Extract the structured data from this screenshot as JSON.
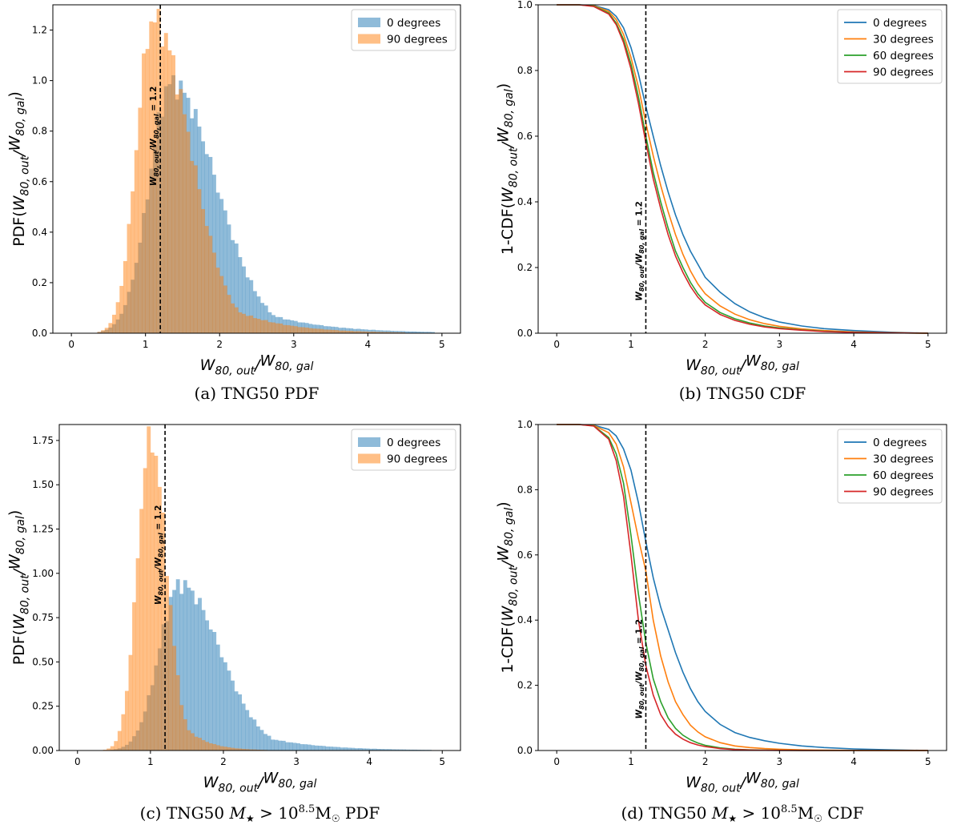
{
  "colors": {
    "blue": "#1f77b4",
    "orange": "#ff7f0e",
    "green": "#2ca02c",
    "red": "#d62728",
    "hist_blue": "#1f77b4",
    "hist_orange": "#ff7f0e"
  },
  "chart_data": [
    {
      "panel": "a",
      "type": "bar",
      "caption": "(a) TNG50 PDF",
      "xlabel": "W80,out/W80,gal",
      "ylabel": "PDF(W80,out/W80,gal)",
      "xlim": [
        -0.25,
        5.25
      ],
      "ylim": [
        0,
        1.3
      ],
      "xticks": [
        "0",
        "1",
        "2",
        "3",
        "4",
        "5"
      ],
      "yticks": [
        "0.0",
        "0.2",
        "0.4",
        "0.6",
        "0.8",
        "1.0",
        "1.2"
      ],
      "vline": {
        "x": 1.2,
        "label": "W80,out/W80,gal = 1.2"
      },
      "legend": {
        "position": "top-right",
        "entries": [
          "0 degrees",
          "90 degrees"
        ]
      },
      "bin_width": 0.05,
      "series": [
        {
          "name": "0 degrees",
          "color": "#1f77b4",
          "opacity": 0.5,
          "mode": 1.35,
          "peak": 0.99,
          "sigma_left": 0.3,
          "sigma_right": 0.6,
          "x_start": 0.35,
          "x_end": 4.85
        },
        {
          "name": "90 degrees",
          "color": "#ff7f0e",
          "opacity": 0.5,
          "mode": 1.1,
          "peak": 1.24,
          "sigma_left": 0.22,
          "sigma_right": 0.5,
          "x_start": 0.35,
          "x_end": 4.5
        }
      ]
    },
    {
      "panel": "b",
      "type": "line",
      "caption": "(b) TNG50 CDF",
      "xlabel": "W80,out/W80,gal",
      "ylabel": "1-CDF(W80,out/W80,gal)",
      "xlim": [
        -0.25,
        5.25
      ],
      "ylim": [
        0,
        1.0
      ],
      "xticks": [
        "0",
        "1",
        "2",
        "3",
        "4",
        "5"
      ],
      "yticks": [
        "0.0",
        "0.2",
        "0.4",
        "0.6",
        "0.8",
        "1.0"
      ],
      "vline": {
        "x": 1.2,
        "label": "W80,out/W80,gal = 1.2"
      },
      "legend": {
        "position": "top-right",
        "entries": [
          "0 degrees",
          "30 degrees",
          "60 degrees",
          "90 degrees"
        ]
      },
      "series": [
        {
          "name": "0 degrees",
          "color": "#1f77b4",
          "x": [
            0,
            0.3,
            0.5,
            0.7,
            0.8,
            0.9,
            1.0,
            1.1,
            1.2,
            1.3,
            1.4,
            1.5,
            1.6,
            1.7,
            1.8,
            1.9,
            2.0,
            2.2,
            2.4,
            2.6,
            2.8,
            3.0,
            3.3,
            3.6,
            4.0,
            4.5,
            5.0
          ],
          "y": [
            1.0,
            1.0,
            0.998,
            0.985,
            0.965,
            0.93,
            0.87,
            0.79,
            0.69,
            0.6,
            0.51,
            0.43,
            0.36,
            0.3,
            0.25,
            0.21,
            0.17,
            0.125,
            0.09,
            0.065,
            0.047,
            0.034,
            0.022,
            0.014,
            0.008,
            0.003,
            0.0
          ]
        },
        {
          "name": "30 degrees",
          "color": "#ff7f0e",
          "x": [
            0,
            0.3,
            0.5,
            0.7,
            0.8,
            0.9,
            1.0,
            1.1,
            1.2,
            1.3,
            1.4,
            1.5,
            1.6,
            1.7,
            1.8,
            1.9,
            2.0,
            2.2,
            2.4,
            2.6,
            2.8,
            3.0,
            3.3,
            3.6,
            4.0,
            4.5,
            5.0
          ],
          "y": [
            1.0,
            1.0,
            0.997,
            0.98,
            0.955,
            0.91,
            0.84,
            0.75,
            0.64,
            0.54,
            0.45,
            0.37,
            0.3,
            0.24,
            0.19,
            0.15,
            0.12,
            0.083,
            0.058,
            0.041,
            0.029,
            0.021,
            0.013,
            0.008,
            0.004,
            0.0015,
            0.0
          ]
        },
        {
          "name": "60 degrees",
          "color": "#2ca02c",
          "x": [
            0,
            0.3,
            0.5,
            0.7,
            0.8,
            0.9,
            1.0,
            1.1,
            1.2,
            1.3,
            1.4,
            1.5,
            1.6,
            1.7,
            1.8,
            1.9,
            2.0,
            2.2,
            2.4,
            2.6,
            2.8,
            3.0,
            3.3,
            3.6,
            4.0,
            4.5,
            5.0
          ],
          "y": [
            1.0,
            1.0,
            0.996,
            0.975,
            0.945,
            0.895,
            0.82,
            0.72,
            0.6,
            0.49,
            0.4,
            0.32,
            0.25,
            0.2,
            0.155,
            0.12,
            0.094,
            0.063,
            0.044,
            0.031,
            0.022,
            0.016,
            0.01,
            0.006,
            0.003,
            0.001,
            0.0
          ]
        },
        {
          "name": "90 degrees",
          "color": "#d62728",
          "x": [
            0,
            0.3,
            0.5,
            0.7,
            0.8,
            0.9,
            1.0,
            1.1,
            1.2,
            1.3,
            1.4,
            1.5,
            1.6,
            1.7,
            1.8,
            1.9,
            2.0,
            2.2,
            2.4,
            2.6,
            2.8,
            3.0,
            3.3,
            3.6,
            4.0,
            4.5,
            5.0
          ],
          "y": [
            1.0,
            1.0,
            0.995,
            0.972,
            0.94,
            0.885,
            0.805,
            0.7,
            0.58,
            0.47,
            0.38,
            0.3,
            0.235,
            0.185,
            0.143,
            0.11,
            0.086,
            0.057,
            0.039,
            0.027,
            0.019,
            0.014,
            0.009,
            0.005,
            0.0025,
            0.001,
            0.0
          ]
        }
      ]
    },
    {
      "panel": "c",
      "type": "bar",
      "caption": "(c) TNG50 M★ > 10^8.5 M☉ PDF",
      "xlabel": "W80,out/W80,gal",
      "ylabel": "PDF(W80,out/W80,gal)",
      "xlim": [
        -0.25,
        5.25
      ],
      "ylim": [
        0,
        1.84
      ],
      "xticks": [
        "0",
        "1",
        "2",
        "3",
        "4",
        "5"
      ],
      "yticks": [
        "0.00",
        "0.25",
        "0.50",
        "0.75",
        "1.00",
        "1.25",
        "1.50",
        "1.75"
      ],
      "vline": {
        "x": 1.2,
        "label": "W80,out/W80,gal = 1.2"
      },
      "legend": {
        "position": "top-right",
        "entries": [
          "0 degrees",
          "90 degrees"
        ]
      },
      "bin_width": 0.05,
      "series": [
        {
          "name": "0 degrees",
          "color": "#1f77b4",
          "opacity": 0.5,
          "mode": 1.4,
          "peak": 0.94,
          "sigma_left": 0.28,
          "sigma_right": 0.55,
          "x_start": 0.3,
          "x_end": 4.8
        },
        {
          "name": "90 degrees",
          "color": "#ff7f0e",
          "opacity": 0.5,
          "mode": 1.0,
          "peak": 1.76,
          "sigma_left": 0.18,
          "sigma_right": 0.22,
          "x_start": 0.3,
          "x_end": 3.0
        }
      ]
    },
    {
      "panel": "d",
      "type": "line",
      "caption": "(d) TNG50 M★ > 10^8.5 M☉ CDF",
      "xlabel": "W80,out/W80,gal",
      "ylabel": "1-CDF(W80,out/W80,gal)",
      "xlim": [
        -0.25,
        5.25
      ],
      "ylim": [
        0,
        1.0
      ],
      "xticks": [
        "0",
        "1",
        "2",
        "3",
        "4",
        "5"
      ],
      "yticks": [
        "0.0",
        "0.2",
        "0.4",
        "0.6",
        "0.8",
        "1.0"
      ],
      "vline": {
        "x": 1.2,
        "label": "W80,out/W80,gal = 1.2"
      },
      "legend": {
        "position": "top-right",
        "entries": [
          "0 degrees",
          "30 degrees",
          "60 degrees",
          "90 degrees"
        ]
      },
      "series": [
        {
          "name": "0 degrees",
          "color": "#1f77b4",
          "x": [
            0,
            0.3,
            0.5,
            0.7,
            0.8,
            0.9,
            1.0,
            1.1,
            1.2,
            1.3,
            1.4,
            1.5,
            1.6,
            1.7,
            1.8,
            1.9,
            2.0,
            2.2,
            2.4,
            2.6,
            2.8,
            3.0,
            3.3,
            3.6,
            4.0,
            4.5,
            5.0
          ],
          "y": [
            1.0,
            1.0,
            0.998,
            0.985,
            0.965,
            0.925,
            0.86,
            0.76,
            0.64,
            0.53,
            0.44,
            0.37,
            0.3,
            0.24,
            0.19,
            0.15,
            0.12,
            0.08,
            0.055,
            0.04,
            0.03,
            0.022,
            0.014,
            0.009,
            0.005,
            0.002,
            0.0
          ]
        },
        {
          "name": "30 degrees",
          "color": "#ff7f0e",
          "x": [
            0,
            0.3,
            0.5,
            0.7,
            0.8,
            0.9,
            1.0,
            1.1,
            1.2,
            1.3,
            1.4,
            1.5,
            1.6,
            1.7,
            1.8,
            1.9,
            2.0,
            2.2,
            2.4,
            2.6,
            2.8,
            3.0,
            3.3,
            3.6,
            4.0,
            4.5,
            5.0
          ],
          "y": [
            1.0,
            1.0,
            0.997,
            0.975,
            0.94,
            0.87,
            0.76,
            0.65,
            0.55,
            0.4,
            0.29,
            0.21,
            0.15,
            0.11,
            0.078,
            0.057,
            0.042,
            0.024,
            0.014,
            0.009,
            0.006,
            0.004,
            0.002,
            0.001,
            0.0005,
            0.0002,
            0.0
          ]
        },
        {
          "name": "60 degrees",
          "color": "#2ca02c",
          "x": [
            0,
            0.3,
            0.5,
            0.7,
            0.8,
            0.9,
            1.0,
            1.1,
            1.2,
            1.3,
            1.4,
            1.5,
            1.6,
            1.7,
            1.8,
            1.9,
            2.0,
            2.2,
            2.4,
            2.6,
            2.8,
            3.0,
            3.3,
            3.6,
            4.0,
            4.5,
            5.0
          ],
          "y": [
            1.0,
            1.0,
            0.996,
            0.96,
            0.91,
            0.82,
            0.66,
            0.48,
            0.33,
            0.22,
            0.15,
            0.1,
            0.068,
            0.047,
            0.033,
            0.023,
            0.016,
            0.008,
            0.004,
            0.002,
            0.001,
            0.0006,
            0.0003,
            0.0001,
            0.0,
            0.0,
            0.0
          ]
        },
        {
          "name": "90 degrees",
          "color": "#d62728",
          "x": [
            0,
            0.3,
            0.5,
            0.7,
            0.8,
            0.9,
            1.0,
            1.1,
            1.2,
            1.3,
            1.4,
            1.5,
            1.6,
            1.7,
            1.8,
            1.9,
            2.0,
            2.2,
            2.4,
            2.6,
            2.8,
            3.0,
            3.3,
            3.6,
            4.0,
            4.5,
            5.0
          ],
          "y": [
            1.0,
            1.0,
            0.995,
            0.955,
            0.89,
            0.78,
            0.6,
            0.4,
            0.26,
            0.17,
            0.11,
            0.074,
            0.05,
            0.035,
            0.024,
            0.017,
            0.012,
            0.006,
            0.003,
            0.0015,
            0.0008,
            0.0005,
            0.0002,
            0.0001,
            0.0,
            0.0,
            0.0
          ]
        }
      ]
    }
  ]
}
